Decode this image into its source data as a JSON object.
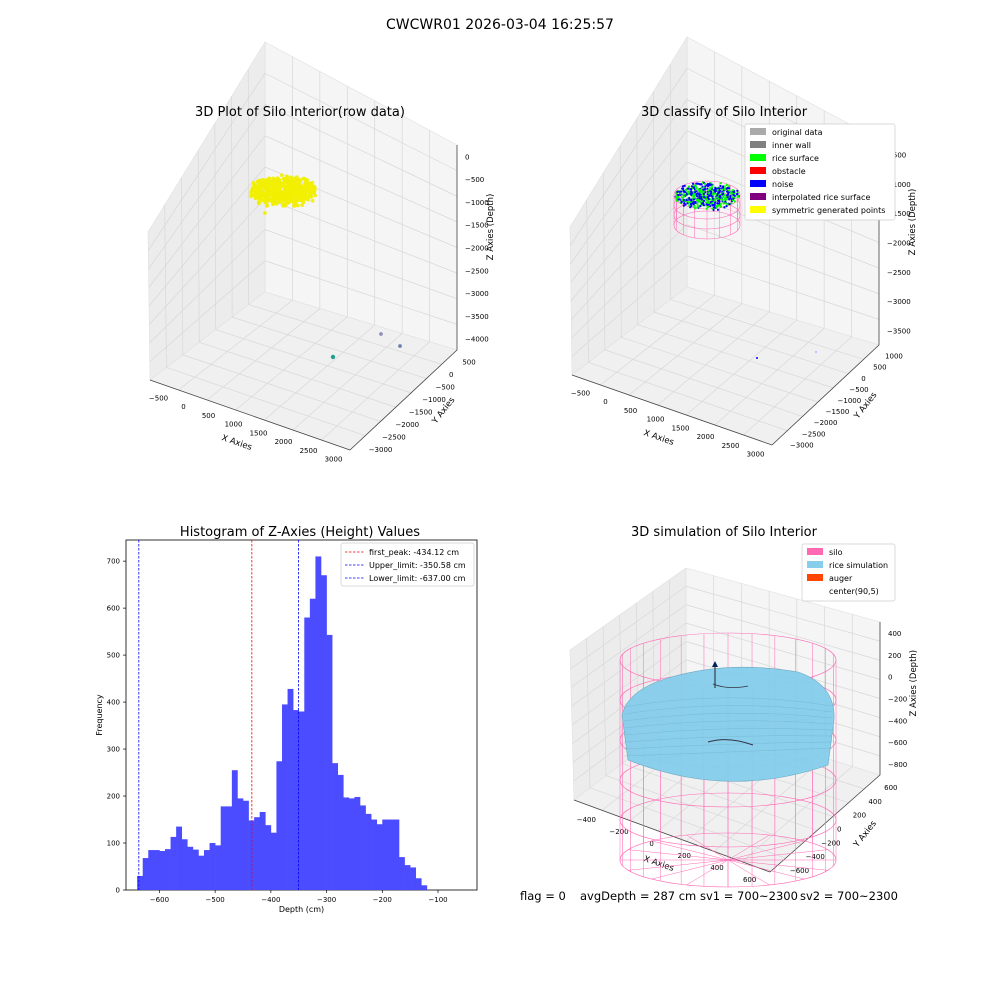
{
  "figure": {
    "title": "CWCWR01 2026-03-04 16:25:57"
  },
  "footer": {
    "flag": "flag = 0",
    "avg_depth": "avgDepth = 287 cm",
    "sv1": "sv1 = 700~2300",
    "sv2": "sv2 = 700~2300"
  },
  "colors": {
    "raw_points": "#f2ef00",
    "hist_bar": "#4b4bff",
    "first_peak_line": "#ff0000",
    "limit_line": "#0000ff",
    "silo": "#ff69b4",
    "rice": "#87ceeb",
    "auger": "#ff4500",
    "rice_surface": "#00ff00",
    "noise": "#0000ff",
    "original": "#aaaaaa",
    "inner_wall": "#808080",
    "obstacle": "#ff0000",
    "interpolated": "#800080",
    "symmetric": "#ffff00"
  },
  "chart_data": [
    {
      "type": "scatter",
      "title": "3D Plot of Silo Interior(row data)",
      "xlabel": "X Axies",
      "ylabel": "Y Axies",
      "zlabel": "Z Axies (Depth)",
      "x_ticks": [
        "−500",
        "0",
        "500",
        "1000",
        "1500",
        "2000",
        "2500",
        "3000"
      ],
      "y_ticks": [
        "500",
        "0",
        "−500",
        "−1000",
        "−1500",
        "−2000",
        "−2500",
        "−3000"
      ],
      "z_ticks": [
        "0",
        "−500",
        "−1000",
        "−1500",
        "−2000",
        "−2500",
        "−3000",
        "−3500",
        "−4000"
      ],
      "grid": true
    },
    {
      "type": "scatter",
      "title": "3D classify of Silo Interior",
      "xlabel": "X Axies",
      "ylabel": "Y Axies",
      "zlabel": "Z Axies (Depth)",
      "x_ticks": [
        "−500",
        "0",
        "500",
        "1000",
        "1500",
        "2000",
        "2500",
        "3000"
      ],
      "y_ticks": [
        "1000",
        "500",
        "0",
        "−500",
        "−1000",
        "−1500",
        "−2000",
        "−2500",
        "−3000"
      ],
      "z_ticks": [
        "−500",
        "−1000",
        "−1500",
        "−2000",
        "−2500",
        "−3000",
        "−3500"
      ],
      "legend": [
        "original data",
        "inner wall",
        "rice surface",
        "obstacle",
        "noise",
        "interpolated rice surface",
        "symmetric generated points"
      ],
      "legend_colors": [
        "#aaaaaa",
        "#808080",
        "#00ff00",
        "#ff0000",
        "#0000ff",
        "#800080",
        "#ffff00"
      ],
      "legend_position": "top-right",
      "grid": true
    },
    {
      "type": "bar",
      "title": "Histogram of Z-Axies (Height) Values",
      "xlabel": "Depth (cm)",
      "ylabel": "Frequency",
      "xlim": [
        -660,
        -30
      ],
      "ylim": [
        0,
        745
      ],
      "x_ticks": [
        -600,
        -500,
        -400,
        -300,
        -200,
        -100
      ],
      "x_tick_labels": [
        "−600",
        "−500",
        "−400",
        "−300",
        "−200",
        "−100"
      ],
      "y_ticks": [
        0,
        100,
        200,
        300,
        400,
        500,
        600,
        700
      ],
      "bin_start": -640,
      "bin_width": 10,
      "values": [
        30,
        68,
        85,
        85,
        83,
        87,
        113,
        135,
        108,
        92,
        86,
        73,
        85,
        100,
        95,
        178,
        178,
        255,
        195,
        190,
        148,
        155,
        166,
        138,
        122,
        274,
        395,
        428,
        383,
        380,
        580,
        620,
        710,
        670,
        543,
        270,
        245,
        197,
        195,
        198,
        180,
        162,
        150,
        140,
        150,
        150,
        150,
        70,
        53,
        48,
        25,
        10
      ],
      "vlines": [
        {
          "label": "first_peak: -434.12 cm",
          "x": -434.12,
          "color": "#ff0000"
        },
        {
          "label": "Upper_limit: -350.58 cm",
          "x": -350.58,
          "color": "#0000ff"
        },
        {
          "label": "Lower_limit: -637.00 cm",
          "x": -637.0,
          "color": "#0000ff"
        }
      ],
      "legend_position": "top-right"
    },
    {
      "type": "scatter",
      "title": "3D simulation of Silo Interior",
      "xlabel": "X Axies",
      "ylabel": "Y Axies",
      "zlabel": "Z Axies (Depth)",
      "x_ticks": [
        "−400",
        "−200",
        "0",
        "200",
        "400",
        "600"
      ],
      "y_ticks": [
        "600",
        "400",
        "200",
        "0",
        "−200",
        "−400",
        "−600"
      ],
      "z_ticks": [
        "400",
        "200",
        "0",
        "−200",
        "−400",
        "−600",
        "−800"
      ],
      "legend": [
        "silo",
        "rice simulation",
        "auger",
        "center(90,5)"
      ],
      "legend_colors": [
        "#ff69b4",
        "#87ceeb",
        "#ff4500",
        "none"
      ],
      "legend_position": "top-right",
      "grid": true
    }
  ]
}
